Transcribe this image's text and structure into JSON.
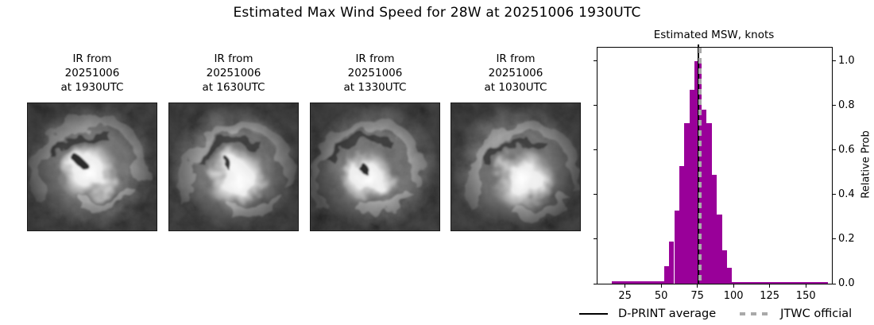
{
  "title": "Estimated Max Wind Speed for 28W at 20251006 1930UTC",
  "ir_panels": [
    {
      "lines": [
        "IR from",
        "20251006",
        "at 1930UTC"
      ]
    },
    {
      "lines": [
        "IR from",
        "20251006",
        "at 1630UTC"
      ]
    },
    {
      "lines": [
        "IR from",
        "20251006",
        "at 1330UTC"
      ]
    },
    {
      "lines": [
        "IR from",
        "20251006",
        "at 1030UTC"
      ]
    }
  ],
  "chart_data": {
    "type": "bar",
    "title": "Estimated MSW, knots",
    "ylabel": "Relative Prob",
    "xlabel": "",
    "xlim": [
      6,
      168
    ],
    "ylim": [
      0,
      1.06
    ],
    "x_ticks": [
      25,
      50,
      75,
      100,
      125,
      150
    ],
    "y_ticks": [
      0.0,
      0.2,
      0.4,
      0.6,
      0.8,
      1.0
    ],
    "y_tick_side": "right",
    "grid": false,
    "bar_color": "#990099",
    "frame_color": "#000000",
    "bars": [
      {
        "from": 16,
        "to": 52,
        "h": 0.012
      },
      {
        "from": 52,
        "to": 55.5,
        "h": 0.08
      },
      {
        "from": 55.5,
        "to": 59,
        "h": 0.19
      },
      {
        "from": 59,
        "to": 62.5,
        "h": 0.33
      },
      {
        "from": 62.5,
        "to": 66,
        "h": 0.53
      },
      {
        "from": 66,
        "to": 69.5,
        "h": 0.72
      },
      {
        "from": 69.5,
        "to": 73,
        "h": 0.87
      },
      {
        "from": 73,
        "to": 78,
        "h": 1.0
      },
      {
        "from": 78,
        "to": 81.5,
        "h": 0.78
      },
      {
        "from": 81.5,
        "to": 85,
        "h": 0.72
      },
      {
        "from": 85,
        "to": 88.5,
        "h": 0.49
      },
      {
        "from": 88.5,
        "to": 92,
        "h": 0.31
      },
      {
        "from": 92,
        "to": 95.5,
        "h": 0.15
      },
      {
        "from": 95.5,
        "to": 99,
        "h": 0.07
      },
      {
        "from": 99,
        "to": 165,
        "h": 0.008
      }
    ],
    "vlines": [
      {
        "label": "D-PRINT average",
        "x": 75.5,
        "style": "solid",
        "color": "#000000"
      },
      {
        "label": "JTWC official",
        "x": 76.9,
        "style": "dashed",
        "color": "#a9a9a9"
      }
    ],
    "legend": [
      {
        "label": "D-PRINT average",
        "style": "solid",
        "color": "#000000"
      },
      {
        "label": "JTWC official",
        "style": "dashed",
        "color": "#a9a9a9"
      }
    ],
    "legend_position": "bottom"
  }
}
